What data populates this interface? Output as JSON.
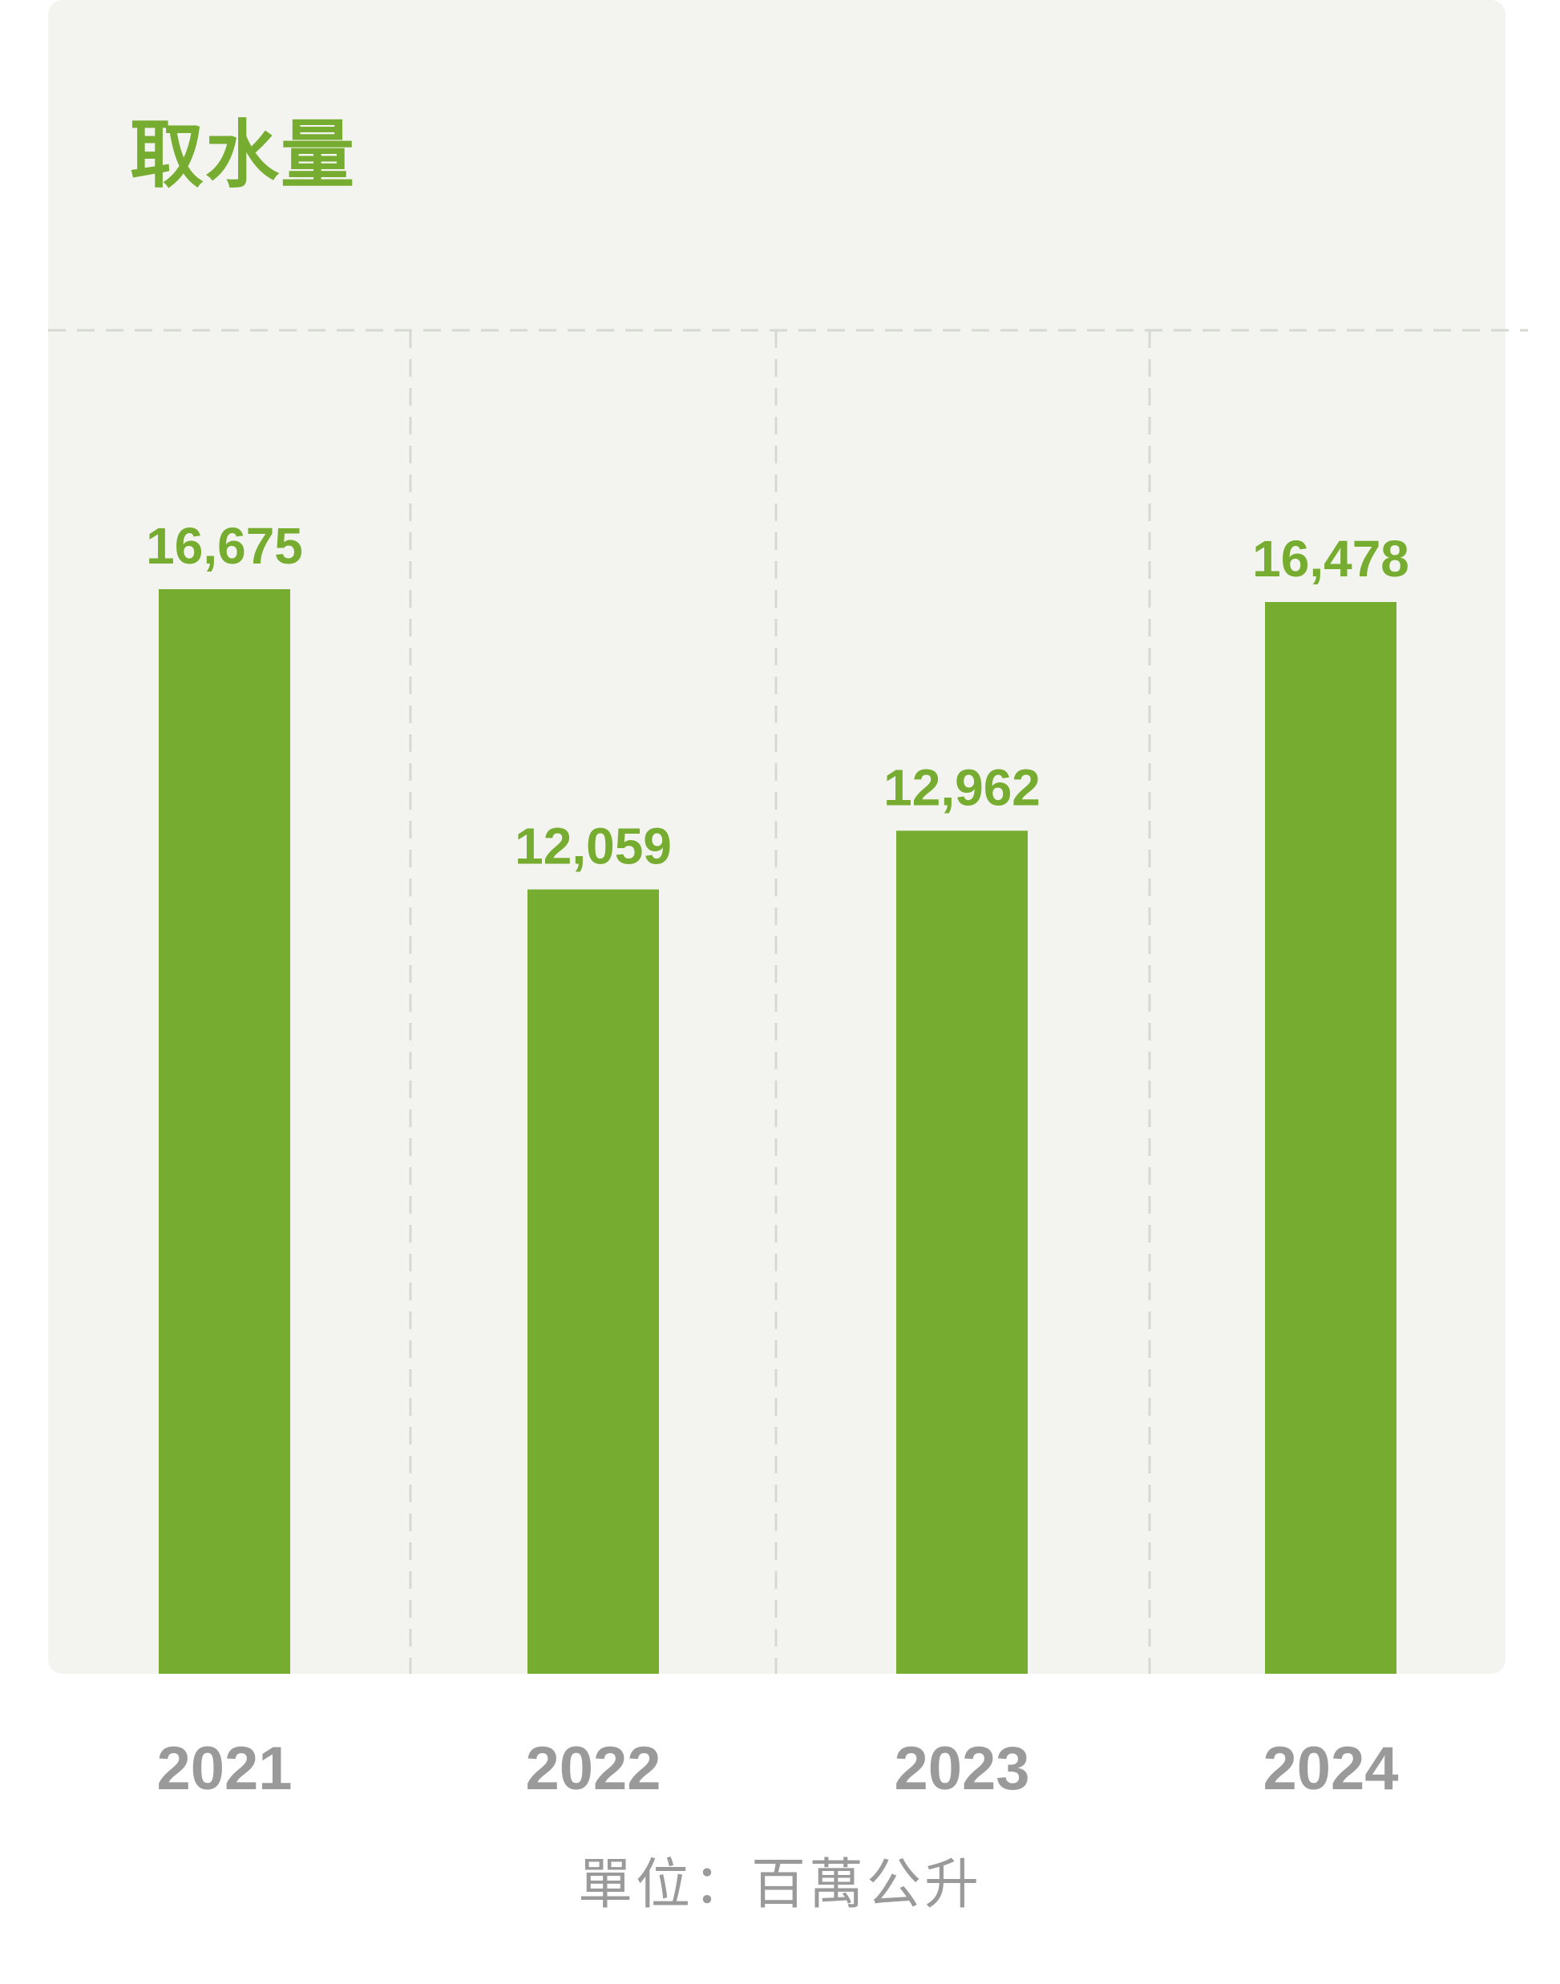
{
  "colors": {
    "accent": "#76ac30",
    "panel_bg": "#f3f4ef",
    "grid": "#d6d8d2",
    "muted_text": "#9a9a9a"
  },
  "chart_data": {
    "type": "bar",
    "title": "取水量",
    "categories": [
      "2021",
      "2022",
      "2023",
      "2024"
    ],
    "values": [
      16675,
      12059,
      12962,
      16478
    ],
    "value_labels": [
      "16,675",
      "12,059",
      "12,962",
      "16,478"
    ],
    "ylim": [
      0,
      20000
    ],
    "grid": true,
    "unit_note": "單位：百萬公升"
  }
}
